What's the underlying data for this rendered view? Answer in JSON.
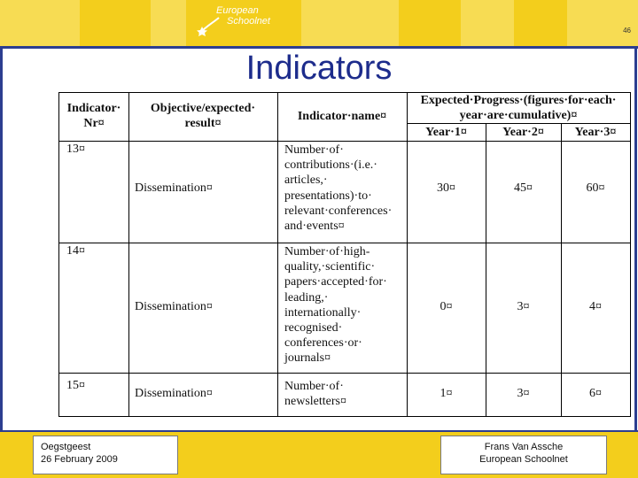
{
  "header": {
    "logo_line1": "European",
    "logo_line2": "Schoolnet",
    "page_number": "46"
  },
  "title": "Indicators",
  "table": {
    "headers": {
      "nr_line1": "Indicator·",
      "nr_line2": "Nr¤",
      "objective_line1": "Objective/expected·",
      "objective_line2": "result¤",
      "indicator_name": "Indicator·name¤",
      "progress_line1": "Expected·Progress·(figures·for·each·",
      "progress_line2": "year·are·cumulative)¤",
      "year1": "Year·1¤",
      "year2": "Year·2¤",
      "year3": "Year·3¤"
    },
    "rows": [
      {
        "nr": "13¤",
        "objective": "Dissemination¤",
        "name_lines": [
          "Number·of·",
          "contributions·(i.e.·",
          "articles,·",
          "presentations)·to·",
          "relevant·conferences·",
          "and·events¤"
        ],
        "y1": "30¤",
        "y2": "45¤",
        "y3": "60¤"
      },
      {
        "nr": "14¤",
        "objective": "Dissemination¤",
        "name_lines": [
          "Number·of·high-",
          "quality,·scientific·",
          "papers·accepted·for·",
          "leading,·",
          "internationally·",
          "recognised·",
          "conferences·or·",
          "journals¤"
        ],
        "y1": "0¤",
        "y2": "3¤",
        "y3": "4¤"
      },
      {
        "nr": "15¤",
        "objective": "Dissemination¤",
        "name_lines": [
          "Number·of·",
          "newsletters¤"
        ],
        "y1": "1¤",
        "y2": "3¤",
        "y3": "6¤"
      }
    ]
  },
  "footer": {
    "left_line1": "Oegstgeest",
    "left_line2": "26 February 2009",
    "right_line1": "Frans Van Assche",
    "right_line2": "European Schoolnet"
  }
}
